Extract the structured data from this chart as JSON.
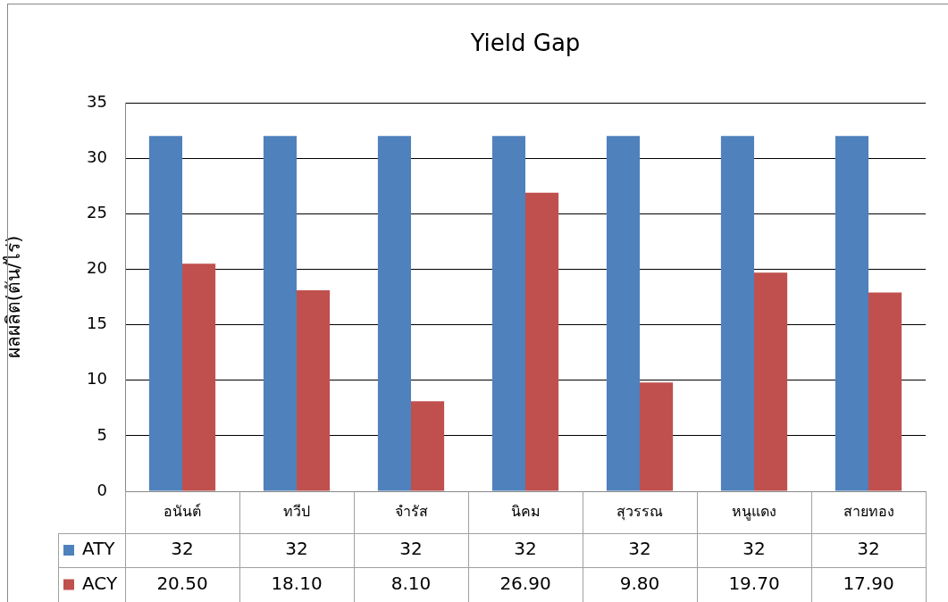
{
  "chart_data": {
    "type": "bar",
    "title": "Yield Gap",
    "ylabel": "ผลผลิต(ตัน/ไร่)",
    "categories": [
      "อนันต์",
      "ทวีป",
      "จำรัส",
      "นิคม",
      "สุวรรณ",
      "หนูแดง",
      "สายทอง"
    ],
    "series": [
      {
        "name": "ATY",
        "color": "#4f81bd",
        "values": [
          32,
          32,
          32,
          32,
          32,
          32,
          32
        ],
        "value_labels": [
          "32",
          "32",
          "32",
          "32",
          "32",
          "32",
          "32"
        ]
      },
      {
        "name": "ACY",
        "color": "#c0504d",
        "values": [
          20.5,
          18.1,
          8.1,
          26.9,
          9.8,
          19.7,
          17.9
        ],
        "value_labels": [
          "20.50",
          "18.10",
          "8.10",
          "26.90",
          "9.80",
          "19.70",
          "17.90"
        ]
      }
    ],
    "ylim": [
      0,
      35
    ],
    "yticks": [
      0,
      5,
      10,
      15,
      20,
      25,
      30,
      35
    ],
    "grid": "y",
    "legend": "bottom"
  }
}
